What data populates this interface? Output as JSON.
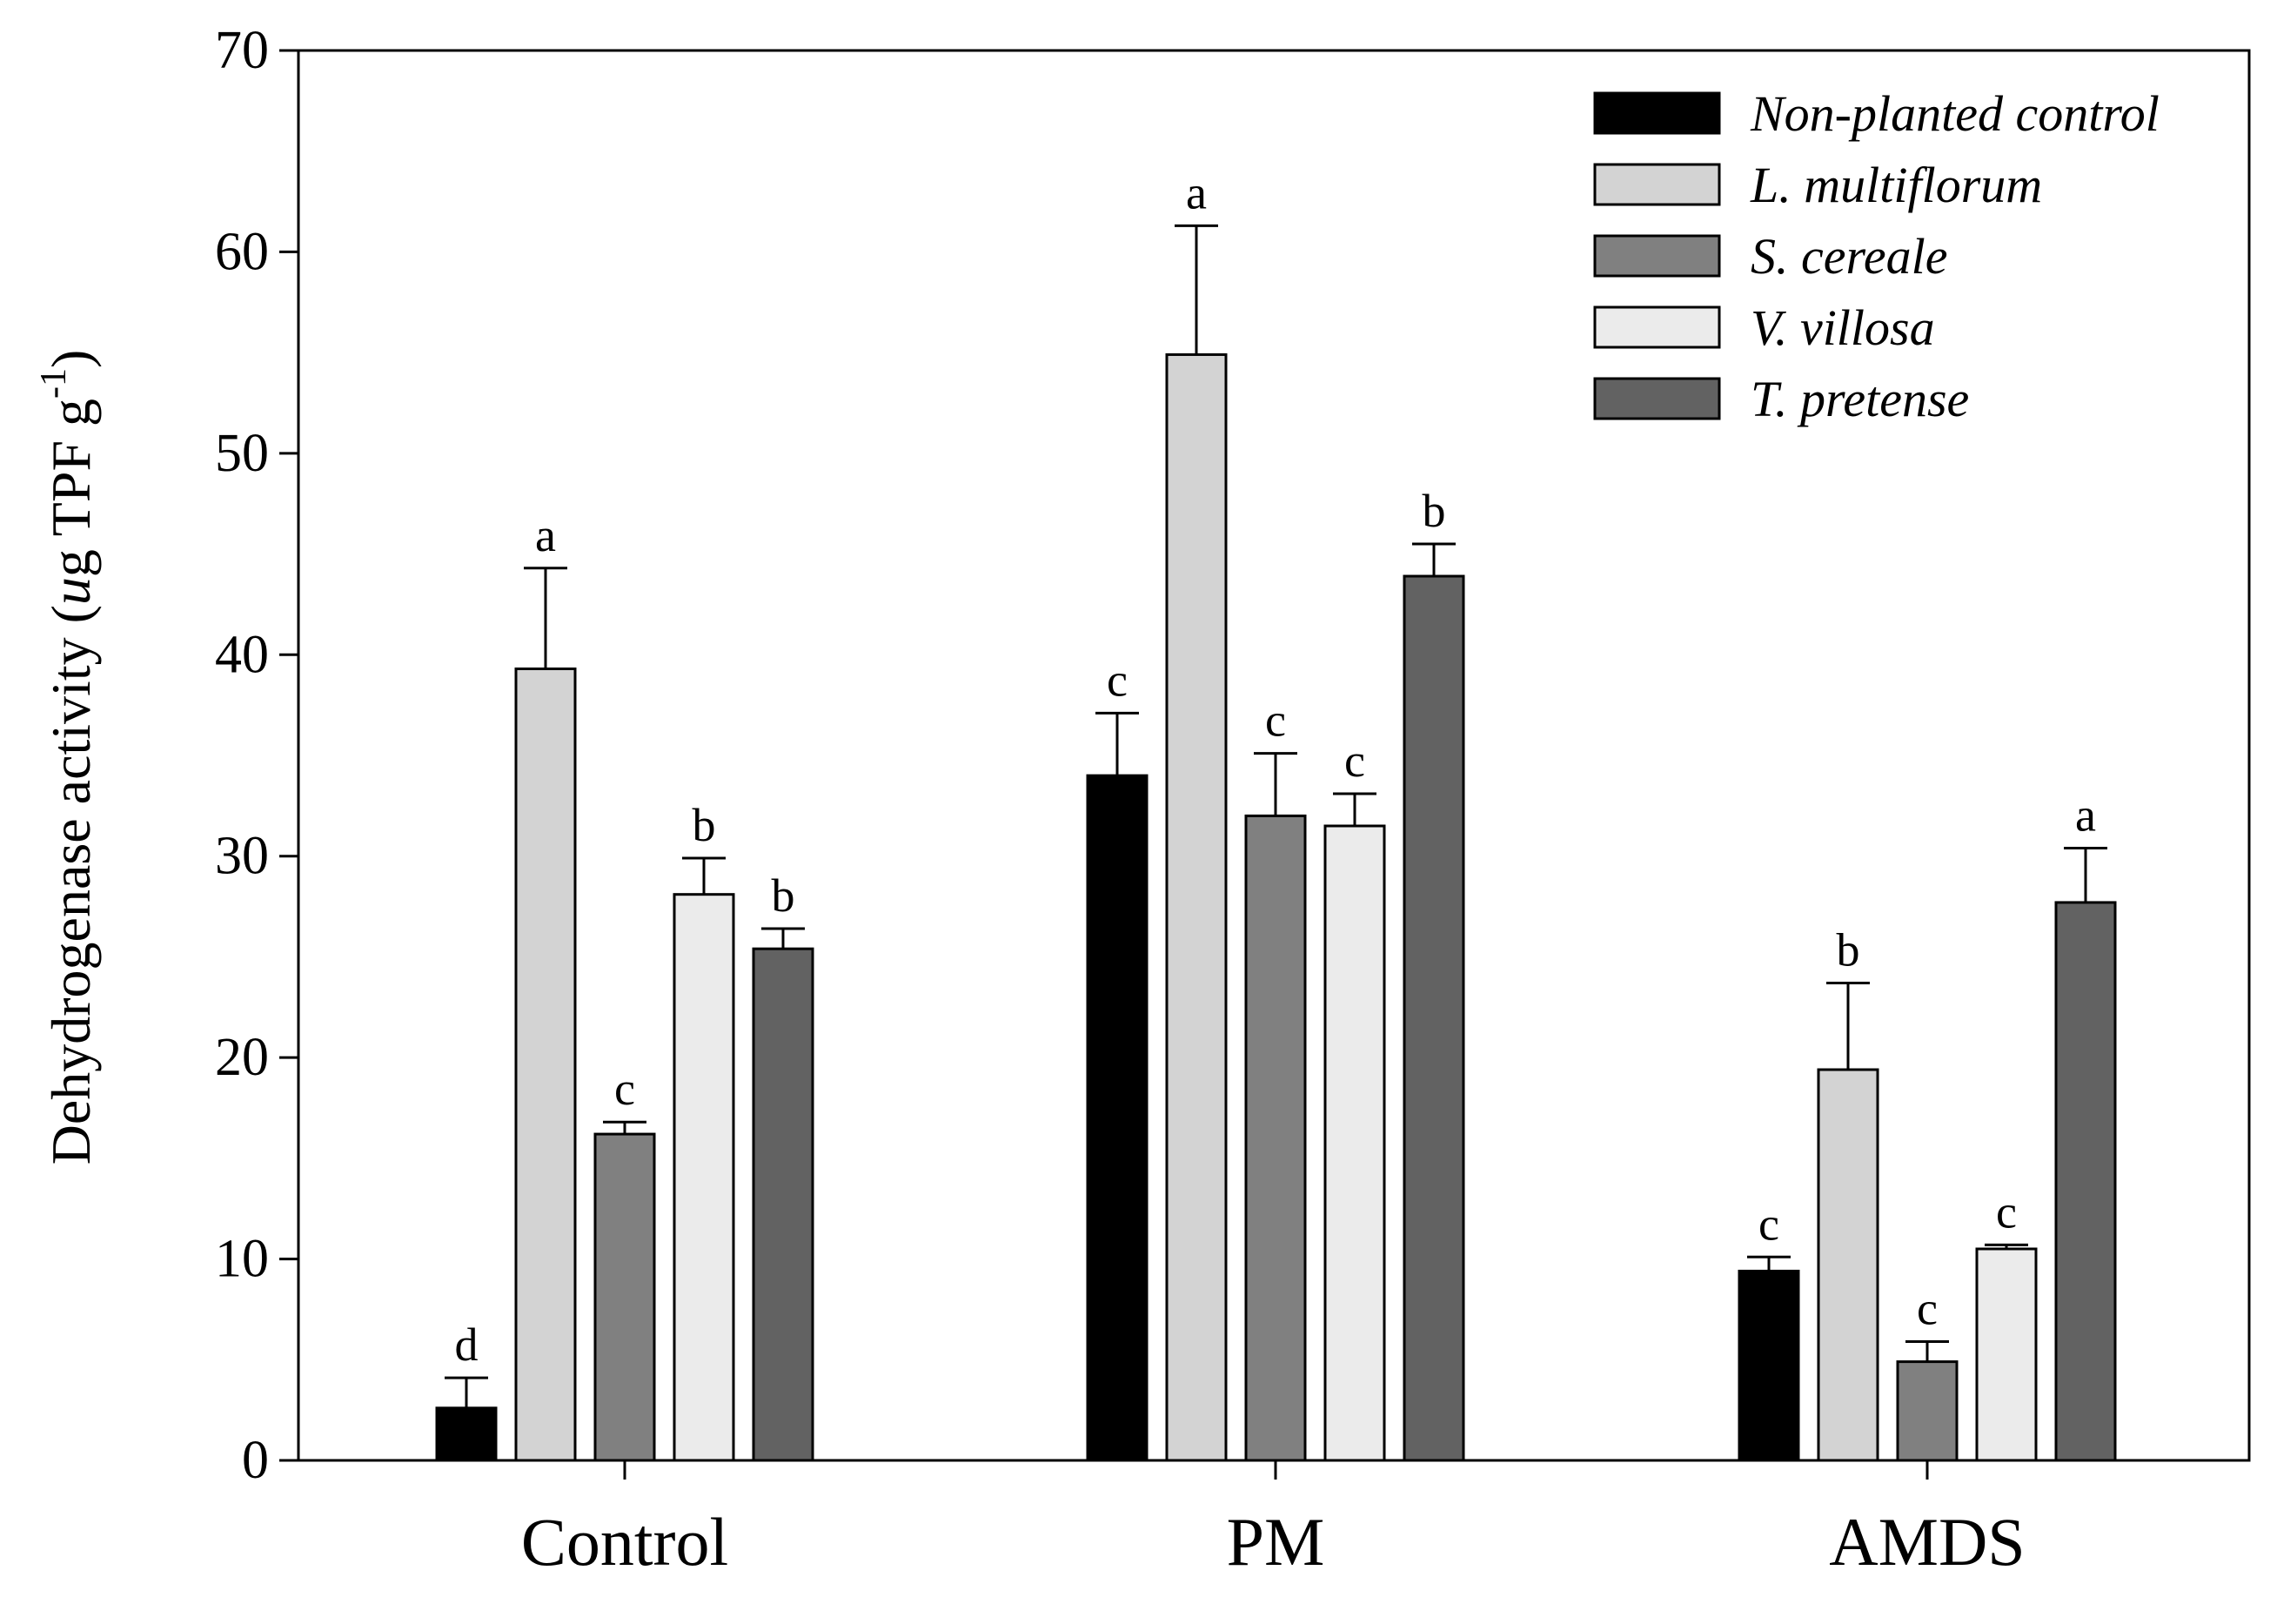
{
  "chart_data": {
    "type": "bar",
    "title": "",
    "xlabel": "",
    "ylabel": {
      "pre": "Dehydrogenase activity (",
      "italic": "u",
      "mid": "g TPF g",
      "sup": "-1",
      "post": ")"
    },
    "ylim": [
      0,
      70
    ],
    "yticks": [
      "0",
      "10",
      "20",
      "30",
      "40",
      "50",
      "60",
      "70"
    ],
    "categories": [
      "Control",
      "PM",
      "AMDS"
    ],
    "series": [
      {
        "name": "Non-planted control",
        "color": "#000000",
        "values": [
          2.6,
          34.0,
          9.4
        ],
        "errors": [
          1.5,
          3.1,
          0.7
        ],
        "letters": [
          "d",
          "c",
          "c"
        ]
      },
      {
        "name": "L. multiflorum",
        "color": "#d3d3d3",
        "values": [
          39.3,
          54.9,
          19.4
        ],
        "errors": [
          5.0,
          6.4,
          4.3
        ],
        "letters": [
          "a",
          "a",
          "b"
        ]
      },
      {
        "name": "S. cereale",
        "color": "#808080",
        "values": [
          16.2,
          32.0,
          4.9
        ],
        "errors": [
          0.6,
          3.1,
          1.0
        ],
        "letters": [
          "c",
          "c",
          "c"
        ]
      },
      {
        "name": "V. villosa",
        "color": "#ebebeb",
        "values": [
          28.1,
          31.5,
          10.5
        ],
        "errors": [
          1.8,
          1.6,
          0.2
        ],
        "letters": [
          "b",
          "c",
          "c"
        ]
      },
      {
        "name": "T. pretense",
        "color": "#626262",
        "values": [
          25.4,
          43.9,
          27.7
        ],
        "errors": [
          1.0,
          1.6,
          2.7
        ],
        "letters": [
          "b",
          "b",
          "a"
        ]
      }
    ],
    "legend_position": "top-right",
    "grid": false
  }
}
